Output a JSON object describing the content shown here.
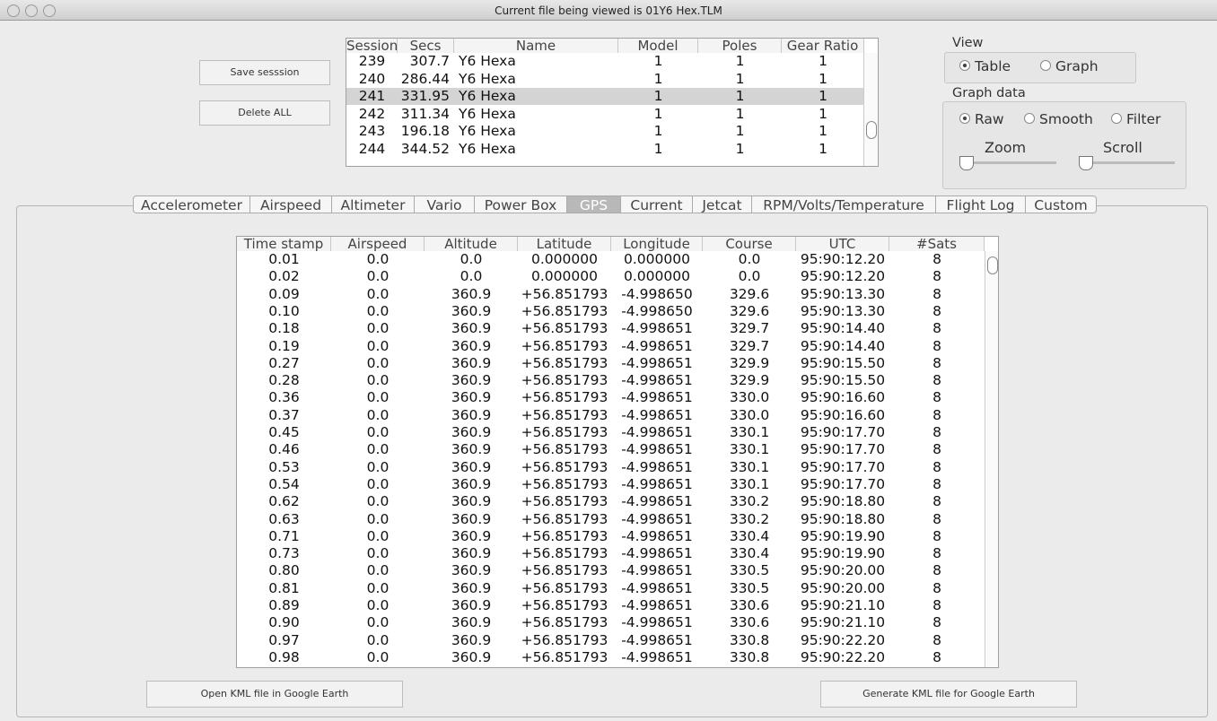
{
  "window": {
    "title": "Current file being viewed is 01Y6 Hex.TLM"
  },
  "buttons": {
    "save": "Save sesssion",
    "delete": "Delete ALL",
    "open_kml": "Open KML file in Google Earth",
    "generate_kml": "Generate KML file for Google Earth"
  },
  "sessions": {
    "headers": [
      "Session",
      "Secs",
      "Name",
      "Model",
      "Poles",
      "Gear Ratio"
    ],
    "selected": 2,
    "rows": [
      [
        "239",
        "307.7",
        "Y6 Hexa",
        "1",
        "1",
        "1"
      ],
      [
        "240",
        "286.44",
        "Y6 Hexa",
        "1",
        "1",
        "1"
      ],
      [
        "241",
        "331.95",
        "Y6 Hexa",
        "1",
        "1",
        "1"
      ],
      [
        "242",
        "311.34",
        "Y6 Hexa",
        "1",
        "1",
        "1"
      ],
      [
        "243",
        "196.18",
        "Y6 Hexa",
        "1",
        "1",
        "1"
      ],
      [
        "244",
        "344.52",
        "Y6 Hexa",
        "1",
        "1",
        "1"
      ]
    ]
  },
  "view": {
    "label": "View",
    "options": [
      "Table",
      "Graph"
    ],
    "selected": 0
  },
  "graph_data": {
    "label": "Graph data",
    "options": [
      "Raw",
      "Smooth",
      "Filter"
    ],
    "selected": 0,
    "zoom": "Zoom",
    "scroll": "Scroll"
  },
  "tabs": {
    "items": [
      "Accelerometer",
      "Airspeed",
      "Altimeter",
      "Vario",
      "Power Box",
      "GPS",
      "Current",
      "Jetcat",
      "RPM/Volts/Temperature",
      "Flight Log",
      "Custom"
    ],
    "selected": 5
  },
  "gps_table": {
    "headers": [
      "Time stamp",
      "Airspeed",
      "Altitude",
      "Latitude",
      "Longitude",
      "Course",
      "UTC",
      "#Sats"
    ],
    "rows": [
      [
        "0.01",
        "0.0",
        "0.0",
        "0.000000",
        "0.000000",
        "0.0",
        "95:90:12.20",
        "8"
      ],
      [
        "0.02",
        "0.0",
        "0.0",
        "0.000000",
        "0.000000",
        "0.0",
        "95:90:12.20",
        "8"
      ],
      [
        "0.09",
        "0.0",
        "360.9",
        "+56.851793",
        "-4.998650",
        "329.6",
        "95:90:13.30",
        "8"
      ],
      [
        "0.10",
        "0.0",
        "360.9",
        "+56.851793",
        "-4.998650",
        "329.6",
        "95:90:13.30",
        "8"
      ],
      [
        "0.18",
        "0.0",
        "360.9",
        "+56.851793",
        "-4.998651",
        "329.7",
        "95:90:14.40",
        "8"
      ],
      [
        "0.19",
        "0.0",
        "360.9",
        "+56.851793",
        "-4.998651",
        "329.7",
        "95:90:14.40",
        "8"
      ],
      [
        "0.27",
        "0.0",
        "360.9",
        "+56.851793",
        "-4.998651",
        "329.9",
        "95:90:15.50",
        "8"
      ],
      [
        "0.28",
        "0.0",
        "360.9",
        "+56.851793",
        "-4.998651",
        "329.9",
        "95:90:15.50",
        "8"
      ],
      [
        "0.36",
        "0.0",
        "360.9",
        "+56.851793",
        "-4.998651",
        "330.0",
        "95:90:16.60",
        "8"
      ],
      [
        "0.37",
        "0.0",
        "360.9",
        "+56.851793",
        "-4.998651",
        "330.0",
        "95:90:16.60",
        "8"
      ],
      [
        "0.45",
        "0.0",
        "360.9",
        "+56.851793",
        "-4.998651",
        "330.1",
        "95:90:17.70",
        "8"
      ],
      [
        "0.46",
        "0.0",
        "360.9",
        "+56.851793",
        "-4.998651",
        "330.1",
        "95:90:17.70",
        "8"
      ],
      [
        "0.53",
        "0.0",
        "360.9",
        "+56.851793",
        "-4.998651",
        "330.1",
        "95:90:17.70",
        "8"
      ],
      [
        "0.54",
        "0.0",
        "360.9",
        "+56.851793",
        "-4.998651",
        "330.1",
        "95:90:17.70",
        "8"
      ],
      [
        "0.62",
        "0.0",
        "360.9",
        "+56.851793",
        "-4.998651",
        "330.2",
        "95:90:18.80",
        "8"
      ],
      [
        "0.63",
        "0.0",
        "360.9",
        "+56.851793",
        "-4.998651",
        "330.2",
        "95:90:18.80",
        "8"
      ],
      [
        "0.71",
        "0.0",
        "360.9",
        "+56.851793",
        "-4.998651",
        "330.4",
        "95:90:19.90",
        "8"
      ],
      [
        "0.73",
        "0.0",
        "360.9",
        "+56.851793",
        "-4.998651",
        "330.4",
        "95:90:19.90",
        "8"
      ],
      [
        "0.80",
        "0.0",
        "360.9",
        "+56.851793",
        "-4.998651",
        "330.5",
        "95:90:20.00",
        "8"
      ],
      [
        "0.81",
        "0.0",
        "360.9",
        "+56.851793",
        "-4.998651",
        "330.5",
        "95:90:20.00",
        "8"
      ],
      [
        "0.89",
        "0.0",
        "360.9",
        "+56.851793",
        "-4.998651",
        "330.6",
        "95:90:21.10",
        "8"
      ],
      [
        "0.90",
        "0.0",
        "360.9",
        "+56.851793",
        "-4.998651",
        "330.6",
        "95:90:21.10",
        "8"
      ],
      [
        "0.97",
        "0.0",
        "360.9",
        "+56.851793",
        "-4.998651",
        "330.8",
        "95:90:22.20",
        "8"
      ],
      [
        "0.98",
        "0.0",
        "360.9",
        "+56.851793",
        "-4.998651",
        "330.8",
        "95:90:22.20",
        "8"
      ]
    ]
  }
}
